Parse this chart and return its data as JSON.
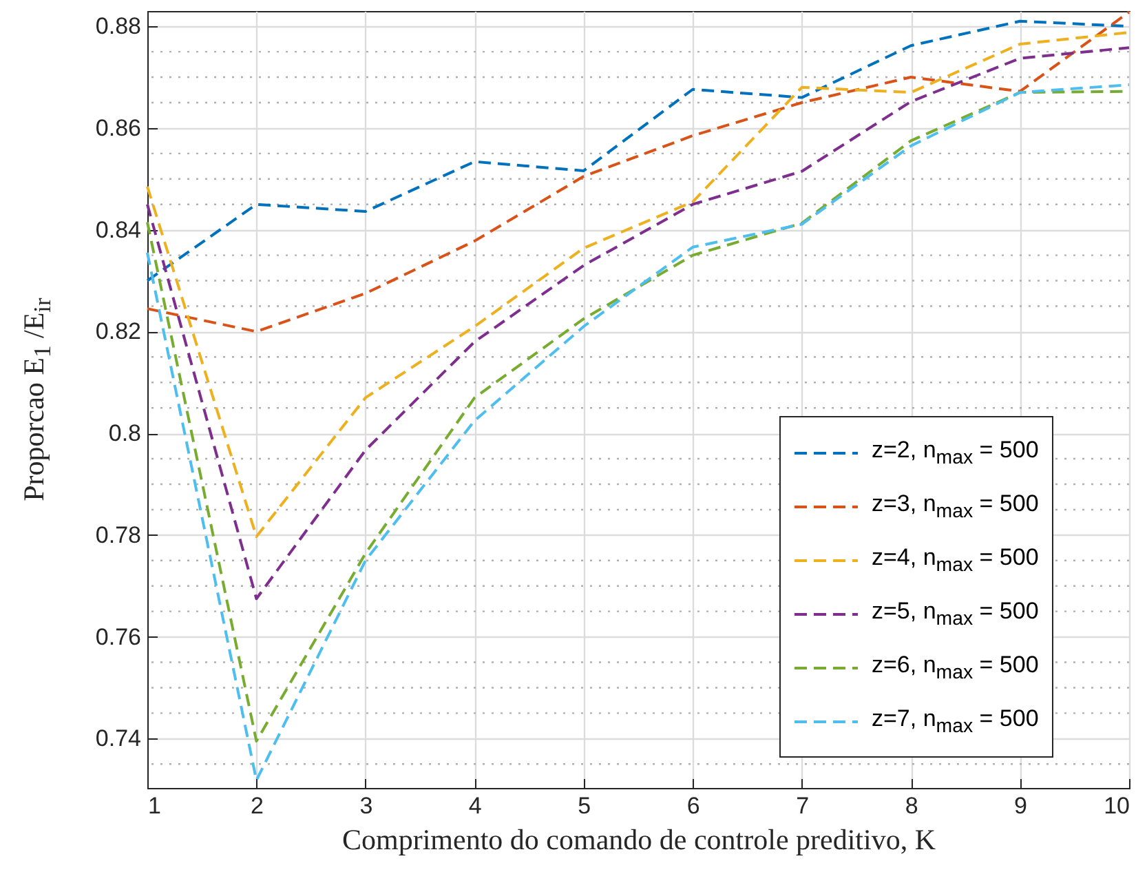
{
  "chart_data": {
    "type": "line",
    "xlabel": "Comprimento do comando de controle preditivo, K",
    "ylabel": "Proporcao E$_{1}$ /E$_{ir}$",
    "x": [
      1,
      2,
      3,
      4,
      5,
      6,
      7,
      8,
      9,
      10
    ],
    "series": [
      {
        "name": "z=2, n$_{max}$ = 500",
        "color": "#0072bd",
        "values": [
          0.83,
          0.845,
          0.8436,
          0.8534,
          0.8516,
          0.8676,
          0.866,
          0.8762,
          0.881,
          0.88
        ]
      },
      {
        "name": "z=3, n$_{max}$ = 500",
        "color": "#d95319",
        "values": [
          0.8245,
          0.82,
          0.8275,
          0.8378,
          0.8505,
          0.8585,
          0.865,
          0.87,
          0.8672,
          0.8828
        ]
      },
      {
        "name": "z=4, n$_{max}$ = 500",
        "color": "#edb120",
        "values": [
          0.8485,
          0.7797,
          0.807,
          0.821,
          0.8364,
          0.8455,
          0.868,
          0.867,
          0.8765,
          0.8788
        ]
      },
      {
        "name": "z=5, n$_{max}$ = 500",
        "color": "#7e2f8e",
        "values": [
          0.845,
          0.7675,
          0.7967,
          0.818,
          0.833,
          0.845,
          0.8515,
          0.8652,
          0.8737,
          0.8758
        ]
      },
      {
        "name": "z=6, n$_{max}$ = 500",
        "color": "#77ac30",
        "values": [
          0.8415,
          0.7395,
          0.7764,
          0.807,
          0.8225,
          0.835,
          0.8413,
          0.8575,
          0.867,
          0.8672
        ]
      },
      {
        "name": "z=7, n$_{max}$ = 500",
        "color": "#4dbeee",
        "values": [
          0.8355,
          0.7318,
          0.775,
          0.8025,
          0.821,
          0.8366,
          0.8411,
          0.8565,
          0.867,
          0.8685
        ]
      }
    ],
    "xlim": [
      1,
      10
    ],
    "xticks": [
      1,
      2,
      3,
      4,
      5,
      6,
      7,
      8,
      9,
      10
    ],
    "ylim": [
      0.7303,
      0.883
    ],
    "yticks": [
      0.74,
      0.76,
      0.78,
      0.8,
      0.82,
      0.84,
      0.86,
      0.88
    ],
    "grid": true,
    "legend": "bottom right",
    "line_style": "dashed",
    "marker": "none"
  }
}
